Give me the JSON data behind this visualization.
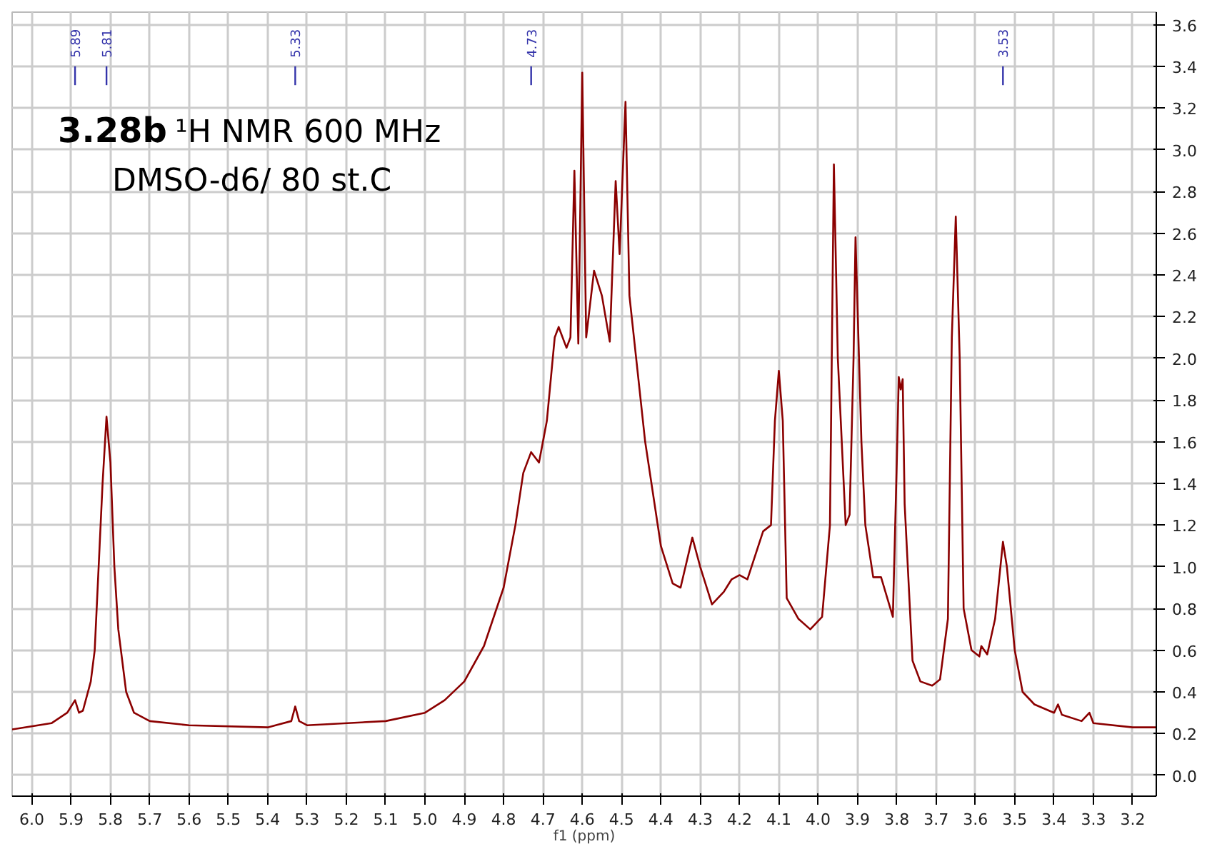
{
  "chart_data": {
    "type": "line",
    "xlabel": "f1 (ppm)",
    "xlim": [
      6.05,
      3.14
    ],
    "ylim": [
      -0.1,
      3.66
    ],
    "xticks": [
      {
        "value": 6.0,
        "label": "6.0"
      },
      5.9,
      5.8,
      5.7,
      5.6,
      5.5,
      5.4,
      5.3,
      5.2,
      5.1,
      {
        "value": 5.0,
        "label": "5.0"
      },
      4.9,
      4.8,
      4.7,
      4.6,
      4.5,
      4.4,
      4.3,
      4.2,
      4.1,
      {
        "value": 4.0,
        "label": "4.0"
      },
      3.9,
      3.8,
      3.7,
      3.6,
      3.5,
      3.4,
      3.3,
      3.2
    ],
    "yticks": [
      {
        "value": 0,
        "label": "0.0"
      },
      0.2,
      0.4,
      0.6,
      0.8,
      {
        "value": 1,
        "label": "1.0"
      },
      1.2,
      1.4,
      1.6,
      1.8,
      {
        "value": 2,
        "label": "2.0"
      },
      2.2,
      2.4,
      2.6,
      2.8,
      {
        "value": 3,
        "label": "3.0"
      },
      3.2,
      3.4,
      3.6
    ],
    "grid": true,
    "line_style": "solid",
    "series": [
      {
        "color": "#8b0000",
        "x": [
          6.05,
          5.95,
          5.91,
          5.89,
          5.88,
          5.87,
          5.85,
          5.84,
          5.82,
          5.81,
          5.8,
          5.79,
          5.78,
          5.76,
          5.74,
          5.7,
          5.6,
          5.4,
          5.34,
          5.33,
          5.32,
          5.3,
          5.1,
          5.0,
          4.95,
          4.9,
          4.85,
          4.8,
          4.77,
          4.75,
          4.73,
          4.71,
          4.69,
          4.67,
          4.66,
          4.64,
          4.63,
          4.62,
          4.61,
          4.6,
          4.59,
          4.57,
          4.55,
          4.53,
          4.515,
          4.505,
          4.49,
          4.48,
          4.46,
          4.44,
          4.4,
          4.37,
          4.35,
          4.32,
          4.3,
          4.27,
          4.24,
          4.22,
          4.2,
          4.18,
          4.14,
          4.12,
          4.11,
          4.1,
          4.09,
          4.08,
          4.05,
          4.02,
          3.99,
          3.97,
          3.96,
          3.95,
          3.93,
          3.92,
          3.91,
          3.905,
          3.89,
          3.88,
          3.86,
          3.84,
          3.81,
          3.8,
          3.795,
          3.79,
          3.785,
          3.78,
          3.76,
          3.74,
          3.71,
          3.69,
          3.67,
          3.66,
          3.65,
          3.64,
          3.63,
          3.61,
          3.59,
          3.585,
          3.57,
          3.55,
          3.53,
          3.52,
          3.5,
          3.48,
          3.45,
          3.4,
          3.39,
          3.38,
          3.33,
          3.31,
          3.3,
          3.2,
          3.14
        ],
        "values": [
          0.22,
          0.25,
          0.3,
          0.36,
          0.3,
          0.31,
          0.45,
          0.6,
          1.4,
          1.72,
          1.5,
          1.0,
          0.7,
          0.4,
          0.3,
          0.26,
          0.24,
          0.23,
          0.26,
          0.33,
          0.26,
          0.24,
          0.26,
          0.3,
          0.36,
          0.45,
          0.62,
          0.9,
          1.2,
          1.45,
          1.55,
          1.5,
          1.7,
          2.1,
          2.15,
          2.05,
          2.1,
          2.9,
          2.07,
          3.37,
          2.1,
          2.42,
          2.3,
          2.08,
          2.85,
          2.5,
          3.23,
          2.3,
          1.95,
          1.6,
          1.1,
          0.92,
          0.9,
          1.14,
          1.0,
          0.82,
          0.88,
          0.94,
          0.96,
          0.94,
          1.17,
          1.2,
          1.7,
          1.94,
          1.7,
          0.85,
          0.75,
          0.7,
          0.76,
          1.2,
          2.93,
          2.0,
          1.2,
          1.25,
          2.0,
          2.58,
          1.6,
          1.2,
          0.95,
          0.95,
          0.76,
          1.5,
          1.91,
          1.85,
          1.9,
          1.3,
          0.55,
          0.45,
          0.43,
          0.46,
          0.75,
          2.1,
          2.68,
          2.0,
          0.8,
          0.6,
          0.57,
          0.62,
          0.58,
          0.75,
          1.12,
          1.0,
          0.6,
          0.4,
          0.34,
          0.3,
          0.34,
          0.29,
          0.26,
          0.3,
          0.25,
          0.23,
          0.23
        ]
      }
    ],
    "annotations": [
      "3.28b",
      "¹H NMR 600 MHz",
      "DMSO-d6/ 80 st.C",
      {
        "text": "5.89",
        "x": 5.89
      },
      {
        "text": "5.81",
        "x": 5.81
      },
      {
        "text": "5.33",
        "x": 5.33
      },
      {
        "text": "4.73",
        "x": 4.73
      },
      {
        "text": "3.53",
        "x": 3.53
      }
    ]
  }
}
